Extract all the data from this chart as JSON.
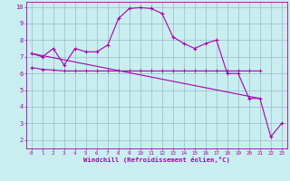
{
  "xlabel": "Windchill (Refroidissement éolien,°C)",
  "background_color": "#c8eef0",
  "grid_color": "#a0b8c8",
  "line_color": "#aa00aa",
  "xlim": [
    -0.5,
    23.5
  ],
  "ylim": [
    1.5,
    10.3
  ],
  "xticks": [
    0,
    1,
    2,
    3,
    4,
    5,
    6,
    7,
    8,
    9,
    10,
    11,
    12,
    13,
    14,
    15,
    16,
    17,
    18,
    19,
    20,
    21,
    22,
    23
  ],
  "yticks": [
    2,
    3,
    4,
    5,
    6,
    7,
    8,
    9,
    10
  ],
  "line1_x": [
    0,
    1,
    2,
    3,
    4,
    5,
    6,
    7,
    8,
    9,
    10,
    11,
    12,
    13,
    14,
    15,
    16,
    17,
    18,
    19,
    20,
    21,
    22,
    23
  ],
  "line1_y": [
    7.2,
    7.0,
    7.5,
    6.5,
    7.5,
    7.3,
    7.3,
    7.7,
    9.3,
    9.9,
    9.95,
    9.9,
    9.6,
    8.2,
    7.8,
    7.5,
    7.8,
    8.0,
    6.0,
    6.0,
    4.5,
    4.5,
    2.2,
    3.0
  ],
  "line2_x": [
    0,
    1,
    2,
    3,
    4,
    5,
    6,
    7,
    8,
    9,
    10,
    11,
    12,
    13,
    14,
    15,
    16,
    17,
    18,
    19,
    20,
    21
  ],
  "line2_y": [
    6.35,
    6.25,
    6.2,
    6.15,
    6.15,
    6.15,
    6.15,
    6.15,
    6.15,
    6.15,
    6.15,
    6.15,
    6.15,
    6.15,
    6.15,
    6.15,
    6.15,
    6.15,
    6.15,
    6.15,
    6.15,
    6.15
  ],
  "line3_x": [
    0,
    21
  ],
  "line3_y": [
    7.2,
    4.5
  ]
}
